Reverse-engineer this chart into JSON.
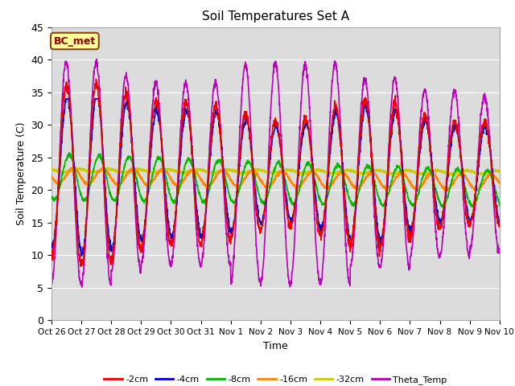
{
  "title": "Soil Temperatures Set A",
  "xlabel": "Time",
  "ylabel": "Soil Temperature (C)",
  "ylim": [
    0,
    45
  ],
  "annotation_text": "BC_met",
  "annotation_color": "#8B0000",
  "annotation_bg": "#FFFF99",
  "plot_bg": "#DCDCDC",
  "grid_color": "white",
  "series": {
    "-2cm": {
      "color": "#EE0000",
      "lw": 1.2
    },
    "-4cm": {
      "color": "#0000CC",
      "lw": 1.2
    },
    "-8cm": {
      "color": "#00BB00",
      "lw": 1.2
    },
    "-16cm": {
      "color": "#FF8800",
      "lw": 1.5
    },
    "-32cm": {
      "color": "#CCCC00",
      "lw": 2.0
    },
    "Theta_Temp": {
      "color": "#BB00BB",
      "lw": 1.2
    }
  },
  "xtick_labels": [
    "Oct 26",
    "Oct 27",
    "Oct 28",
    "Oct 29",
    "Oct 30",
    "Oct 31",
    "Nov 1",
    "Nov 2",
    "Nov 3",
    "Nov 4",
    "Nov 5",
    "Nov 6",
    "Nov 7",
    "Nov 8",
    "Nov 9",
    "Nov 10"
  ],
  "num_days": 15,
  "points_per_day": 144
}
